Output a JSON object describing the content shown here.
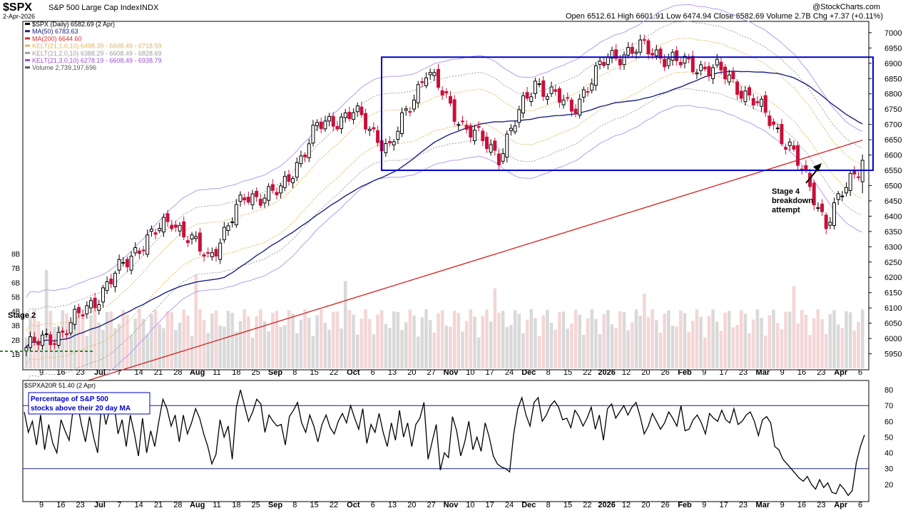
{
  "header": {
    "symbol": "$SPX",
    "name": "S&P 500 Large Cap Index",
    "exchange": "INDX",
    "date": "2-Apr-2026",
    "source": "@StockCharts.com",
    "quote": "Open 6512.61  High 6601.91  Low 6474.94  Close 6582.69  Volume 2.7B  Chg +7.37 (+0.11%)"
  },
  "legend": [
    {
      "text": "$SPX (Daily) 6582.69 (2 Apr)",
      "color": "#000000",
      "icon": "candle-icon"
    },
    {
      "text": "MA(50) 6783.63",
      "color": "#1a237e",
      "icon": "line-icon"
    },
    {
      "text": "MA(200) 6644.60",
      "color": "#d32f2f",
      "icon": "line-icon"
    },
    {
      "text": "KELT(21,1.0,10) 6498.39 - 6608.49 - 6718.59",
      "color": "#e6b35c",
      "icon": "line-icon"
    },
    {
      "text": "KELT(21,2.0,10) 6388.29 - 6608.49 - 6828.69",
      "color": "#9e9e9e",
      "icon": "line-icon"
    },
    {
      "text": "KELT(21,3.0,10) 6278.19 - 6608.49 - 6938.79",
      "color": "#9c4fd6",
      "icon": "line-icon"
    },
    {
      "text": "Volume 2,739,197,696",
      "color": "#555555",
      "icon": "volume-icon"
    }
  ],
  "annotations": {
    "stage2": "Stage 2",
    "stage4": [
      "Stage 4",
      "breakdown",
      "attempt"
    ],
    "lower_note": [
      "Percentage of S&P 500",
      "stocks above their 20 day MA"
    ]
  },
  "lower_header": "$SPXA20R 51.40 (2 Apr)",
  "colors": {
    "up": "#000000",
    "down": "#c8103a",
    "ma50": "#1a237e",
    "ma200": "#d32f2f",
    "box": "#0000cc",
    "kelt1": "#e6b35c",
    "kelt2": "#9e9e9e",
    "kelt3": "#b79cf0"
  },
  "chart_data": [
    {
      "type": "candlestick",
      "title": "$SPX S&P 500 Large Cap Index INDX",
      "ylim": [
        5900,
        7030
      ],
      "yticks": [
        5950,
        6000,
        6050,
        6100,
        6150,
        6200,
        6250,
        6300,
        6350,
        6400,
        6450,
        6500,
        6550,
        6600,
        6650,
        6700,
        6750,
        6800,
        6850,
        6900,
        6950,
        7000
      ],
      "volume_ticks": [
        "1B",
        "2B",
        "3B",
        "4B",
        "5B",
        "6B",
        "7B",
        "8B"
      ],
      "xticks": [
        "9",
        "16",
        "23",
        "Jul",
        "7",
        "14",
        "21",
        "28",
        "Aug",
        "11",
        "18",
        "25",
        "Sep",
        "8",
        "15",
        "22",
        "Oct",
        "6",
        "13",
        "20",
        "27",
        "Nov",
        "10",
        "17",
        "24",
        "Dec",
        "8",
        "15",
        "22",
        "2026",
        "12",
        "20",
        "26",
        "Feb",
        "9",
        "17",
        "23",
        "Mar",
        "9",
        "16",
        "23",
        "Apr",
        "6"
      ],
      "last_ohlc": {
        "open": 6512.61,
        "high": 6601.91,
        "low": 6474.94,
        "close": 6582.69
      },
      "trading_range_box": {
        "low": 6550,
        "high": 6920
      },
      "anchors": [
        {
          "period": "early Jun 2025",
          "close": 5970
        },
        {
          "period": "mid Jun 2025",
          "close": 6020
        },
        {
          "period": "late Jun 2025",
          "close": 6140
        },
        {
          "period": "mid Jul 2025",
          "close": 6290
        },
        {
          "period": "late Jul 2025",
          "close": 6390
        },
        {
          "period": "early Aug 2025",
          "close": 6260
        },
        {
          "period": "mid Aug 2025",
          "close": 6460
        },
        {
          "period": "early Sep 2025",
          "close": 6480
        },
        {
          "period": "late Sep 2025",
          "close": 6690
        },
        {
          "period": "early Oct 2025",
          "close": 6740
        },
        {
          "period": "mid Oct 2025",
          "close": 6620
        },
        {
          "period": "late Oct 2025",
          "close": 6880
        },
        {
          "period": "mid Nov 2025",
          "close": 6700
        },
        {
          "period": "late Nov 2025",
          "close": 6600
        },
        {
          "period": "early Dec 2025",
          "close": 6840
        },
        {
          "period": "mid Dec 2025",
          "close": 6750
        },
        {
          "period": "early Jan 2026",
          "close": 6920
        },
        {
          "period": "late Jan 2026",
          "close": 6950
        },
        {
          "period": "early Feb 2026",
          "close": 6900
        },
        {
          "period": "late Feb 2026",
          "close": 6880
        },
        {
          "period": "early Mar 2026",
          "close": 6780
        },
        {
          "period": "mid Mar 2026",
          "close": 6630
        },
        {
          "period": "late Mar 2026",
          "close": 6380
        },
        {
          "period": "2 Apr 2026",
          "close": 6582.69
        }
      ]
    },
    {
      "type": "line",
      "title": "$SPXA20R 51.40 (2 Apr)",
      "ylim": [
        10,
        85
      ],
      "yticks": [
        20,
        30,
        40,
        50,
        60,
        70,
        80
      ],
      "reference_lines": [
        30,
        70
      ],
      "xticks": [
        "9",
        "16",
        "23",
        "Jul",
        "7",
        "14",
        "21",
        "28",
        "Aug",
        "11",
        "18",
        "25",
        "Sep",
        "8",
        "15",
        "22",
        "Oct",
        "6",
        "13",
        "20",
        "27",
        "Nov",
        "10",
        "17",
        "24",
        "Dec",
        "8",
        "15",
        "22",
        "2026",
        "12",
        "20",
        "26",
        "Feb",
        "9",
        "17",
        "23",
        "Mar",
        "9",
        "16",
        "23",
        "Apr",
        "6"
      ],
      "values": [
        66,
        53,
        60,
        45,
        64,
        42,
        58,
        46,
        40,
        61,
        54,
        48,
        68,
        72,
        58,
        47,
        63,
        50,
        40,
        73,
        58,
        68,
        71,
        52,
        61,
        44,
        64,
        52,
        38,
        62,
        40,
        54,
        44,
        60,
        74,
        68,
        57,
        64,
        47,
        64,
        52,
        59,
        68,
        62,
        52,
        44,
        33,
        39,
        61,
        50,
        57,
        36,
        69,
        80,
        70,
        60,
        66,
        74,
        71,
        53,
        64,
        60,
        57,
        58,
        45,
        63,
        67,
        72,
        59,
        53,
        64,
        57,
        47,
        58,
        64,
        56,
        52,
        60,
        65,
        59,
        70,
        62,
        55,
        68,
        46,
        58,
        53,
        65,
        53,
        44,
        59,
        48,
        67,
        50,
        59,
        44,
        58,
        62,
        72,
        36,
        47,
        58,
        29,
        40,
        37,
        63,
        54,
        38,
        47,
        60,
        42,
        50,
        41,
        59,
        50,
        38,
        33,
        31,
        30,
        28,
        52,
        68,
        75,
        64,
        57,
        72,
        75,
        60,
        64,
        70,
        73,
        69,
        61,
        62,
        56,
        67,
        63,
        57,
        62,
        69,
        55,
        64,
        48,
        68,
        71,
        62,
        66,
        70,
        64,
        69,
        72,
        63,
        52,
        57,
        65,
        60,
        55,
        59,
        66,
        62,
        57,
        70,
        54,
        55,
        61,
        64,
        59,
        52,
        65,
        62,
        60,
        67,
        61,
        59,
        68,
        58,
        60,
        64,
        66,
        60,
        51,
        61,
        63,
        59,
        44,
        42,
        36,
        33,
        30,
        27,
        24,
        22,
        25,
        20,
        17,
        23,
        18,
        21,
        15,
        14,
        20,
        17,
        13,
        16,
        34,
        44,
        51.4
      ]
    }
  ]
}
